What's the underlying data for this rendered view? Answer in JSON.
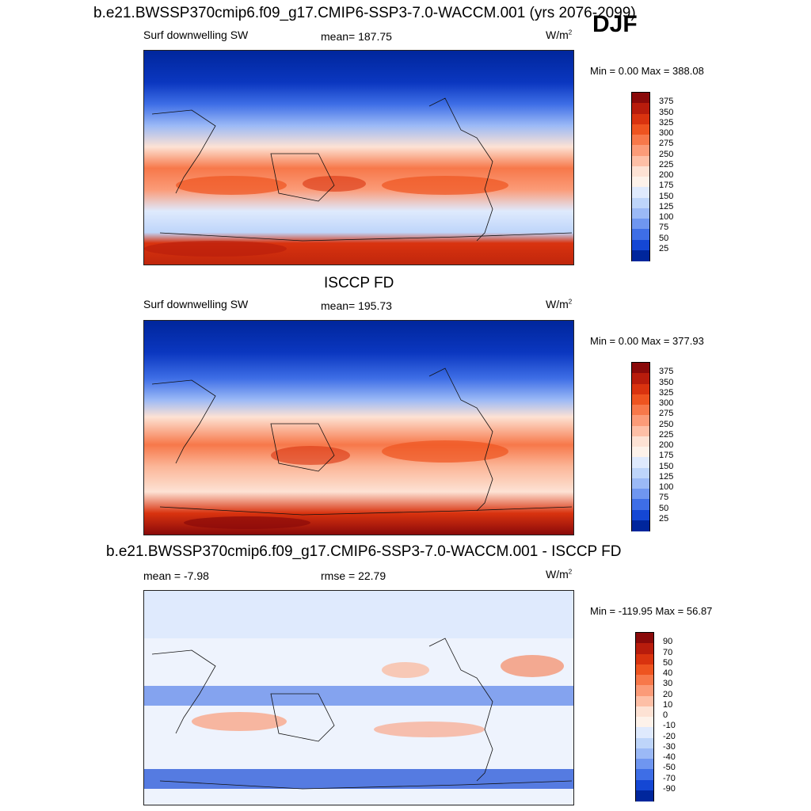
{
  "season": "DJF",
  "panels": [
    {
      "id": "model",
      "title": "b.e21.BWSSP370cmip6.f09_g17.CMIP6-SSP3-7.0-WACCM.001 (yrs 2076-2099)",
      "left_label": "Surf downwelling SW",
      "center_label": "mean= 187.75",
      "units": "W/m",
      "units_sup": "2",
      "minmax": "Min =   0.00 Max = 388.08"
    },
    {
      "id": "obs",
      "title": "ISCCP FD",
      "left_label": "Surf downwelling SW",
      "center_label": "mean= 195.73",
      "units": "W/m",
      "units_sup": "2",
      "minmax": "Min =   0.00 Max = 377.93"
    },
    {
      "id": "diff",
      "title": "b.e21.BWSSP370cmip6.f09_g17.CMIP6-SSP3-7.0-WACCM.001 - ISCCP FD",
      "left_label": "mean =  -7.98",
      "center_label": "rmse =  22.79",
      "units": "W/m",
      "units_sup": "2",
      "minmax": "Min = -119.95 Max =  56.87"
    }
  ],
  "colorbars": {
    "field": {
      "labels": [
        "375",
        "350",
        "325",
        "300",
        "275",
        "250",
        "225",
        "200",
        "175",
        "150",
        "125",
        "100",
        "75",
        "50",
        "25"
      ],
      "colors": [
        "#8a0a0a",
        "#b81c0c",
        "#d9330f",
        "#ee5420",
        "#f7784a",
        "#fb9b78",
        "#fdbfa6",
        "#fde2d4",
        "#fdf2ea",
        "#dfeafd",
        "#bed5fa",
        "#9bb9f6",
        "#6f96f0",
        "#3e6ee6",
        "#1447d4",
        "#00269c"
      ]
    },
    "diff": {
      "labels": [
        "90",
        "70",
        "50",
        "40",
        "30",
        "20",
        "10",
        "0",
        "-10",
        "-20",
        "-30",
        "-40",
        "-50",
        "-70",
        "-90"
      ],
      "colors": [
        "#8a0a0a",
        "#b81c0c",
        "#d9330f",
        "#ee5420",
        "#f7784a",
        "#fb9b78",
        "#fdbfa6",
        "#fde2d4",
        "#fdf2ea",
        "#dfeafd",
        "#bed5fa",
        "#9bb9f6",
        "#6f96f0",
        "#3e6ee6",
        "#1447d4",
        "#00269c"
      ]
    }
  }
}
